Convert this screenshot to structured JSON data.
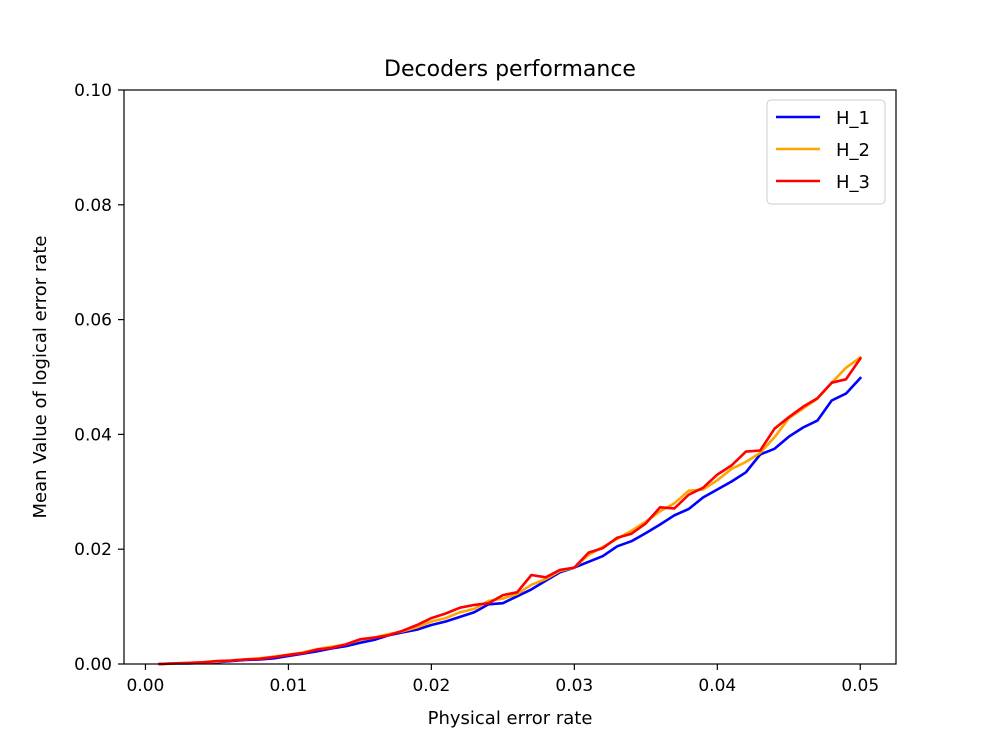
{
  "chart_data": {
    "type": "line",
    "title": "Decoders performance",
    "xlabel": "Physical error rate",
    "ylabel": "Mean Value of logical error rate",
    "xlim": [
      -0.0015,
      0.0525
    ],
    "ylim": [
      0,
      0.1
    ],
    "xticks": [
      "0.00",
      "0.01",
      "0.02",
      "0.03",
      "0.04",
      "0.05"
    ],
    "yticks": [
      "0.00",
      "0.02",
      "0.04",
      "0.06",
      "0.08",
      "0.10"
    ],
    "grid": false,
    "legend_position": "top-right",
    "x": [
      0.001,
      0.002,
      0.003,
      0.004,
      0.005,
      0.006,
      0.007,
      0.008,
      0.009,
      0.01,
      0.011,
      0.012,
      0.013,
      0.014,
      0.015,
      0.016,
      0.017,
      0.018,
      0.019,
      0.02,
      0.021,
      0.022,
      0.023,
      0.024,
      0.025,
      0.026,
      0.027,
      0.028,
      0.029,
      0.03,
      0.031,
      0.032,
      0.033,
      0.034,
      0.035,
      0.036,
      0.037,
      0.038,
      0.039,
      0.04,
      0.041,
      0.042,
      0.043,
      0.044,
      0.045,
      0.046,
      0.047,
      0.048,
      0.049,
      0.05
    ],
    "series": [
      {
        "name": "H_1",
        "color": "#0000ff",
        "values": [
          0.0,
          0.0001,
          0.0001,
          0.0002,
          0.0003,
          0.0005,
          0.0007,
          0.0008,
          0.001,
          0.0014,
          0.0018,
          0.0022,
          0.0027,
          0.0031,
          0.0037,
          0.0042,
          0.005,
          0.0055,
          0.006,
          0.0068,
          0.0074,
          0.0082,
          0.009,
          0.0104,
          0.0106,
          0.0118,
          0.013,
          0.0145,
          0.016,
          0.0168,
          0.0178,
          0.0188,
          0.0205,
          0.0214,
          0.0228,
          0.0243,
          0.0259,
          0.027,
          0.029,
          0.0304,
          0.0318,
          0.0334,
          0.0365,
          0.0375,
          0.0396,
          0.0412,
          0.0424,
          0.0459,
          0.0471,
          0.0498
        ]
      },
      {
        "name": "H_2",
        "color": "#ffa500",
        "values": [
          0.0,
          0.0001,
          0.0002,
          0.0003,
          0.0004,
          0.0006,
          0.0008,
          0.001,
          0.0013,
          0.0016,
          0.002,
          0.0026,
          0.003,
          0.0034,
          0.0042,
          0.0046,
          0.0052,
          0.0057,
          0.0064,
          0.0074,
          0.008,
          0.009,
          0.0096,
          0.011,
          0.0114,
          0.0122,
          0.0138,
          0.0148,
          0.0162,
          0.0168,
          0.019,
          0.0204,
          0.0218,
          0.0232,
          0.0248,
          0.0266,
          0.028,
          0.0302,
          0.0304,
          0.032,
          0.034,
          0.0352,
          0.0368,
          0.0395,
          0.0428,
          0.0445,
          0.0462,
          0.049,
          0.0516,
          0.0534
        ]
      },
      {
        "name": "H_3",
        "color": "#ff0000",
        "values": [
          0.0,
          0.0001,
          0.0002,
          0.0003,
          0.0005,
          0.0006,
          0.0008,
          0.0009,
          0.0012,
          0.0016,
          0.0019,
          0.0025,
          0.0028,
          0.0034,
          0.0043,
          0.0046,
          0.005,
          0.0058,
          0.0068,
          0.008,
          0.0088,
          0.0098,
          0.0103,
          0.0106,
          0.012,
          0.0125,
          0.0155,
          0.0151,
          0.0164,
          0.0168,
          0.0194,
          0.0202,
          0.022,
          0.0227,
          0.0245,
          0.0273,
          0.0271,
          0.0295,
          0.0307,
          0.033,
          0.0346,
          0.037,
          0.0372,
          0.041,
          0.043,
          0.0448,
          0.0463,
          0.049,
          0.0496,
          0.0532
        ]
      }
    ]
  }
}
